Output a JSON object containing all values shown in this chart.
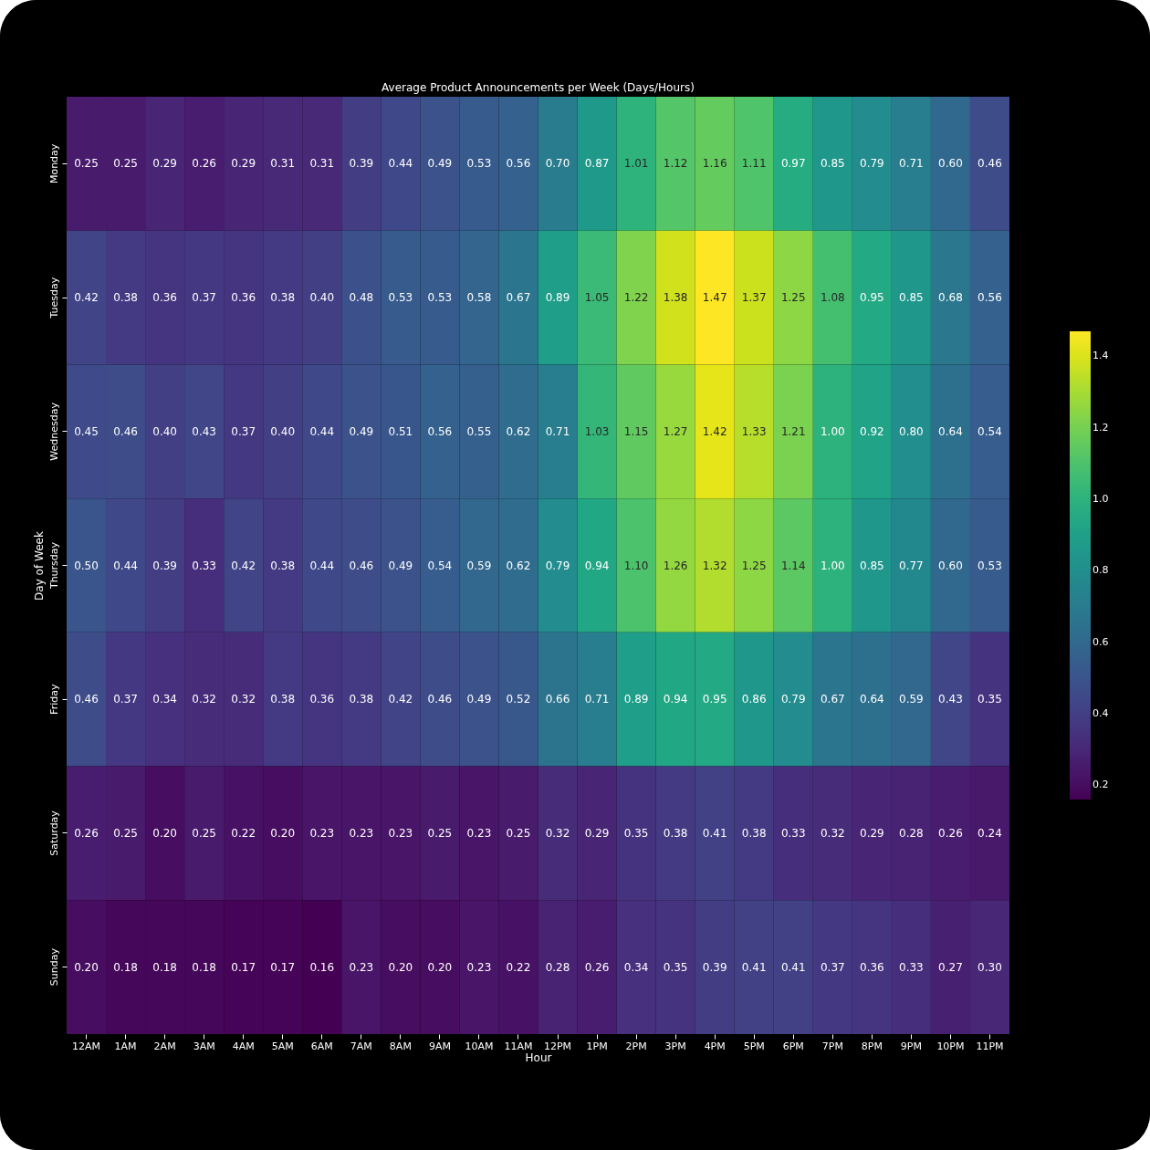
{
  "chart_data": {
    "type": "heatmap",
    "title": "Average Product Announcements per Week (Days/Hours)",
    "xlabel": "Hour",
    "ylabel": "Day of Week",
    "categories": [
      "12AM",
      "1AM",
      "2AM",
      "3AM",
      "4AM",
      "5AM",
      "6AM",
      "7AM",
      "8AM",
      "9AM",
      "10AM",
      "11AM",
      "12PM",
      "1PM",
      "2PM",
      "3PM",
      "4PM",
      "5PM",
      "6PM",
      "7PM",
      "8PM",
      "9PM",
      "10PM",
      "11PM"
    ],
    "y_categories": [
      "Monday",
      "Tuesday",
      "Wednesday",
      "Thursday",
      "Friday",
      "Saturday",
      "Sunday"
    ],
    "cells": [
      [
        0.25,
        0.25,
        0.29,
        0.26,
        0.29,
        0.31,
        0.31,
        0.39,
        0.44,
        0.49,
        0.53,
        0.56,
        0.7,
        0.87,
        1.01,
        1.12,
        1.16,
        1.11,
        0.97,
        0.85,
        0.79,
        0.71,
        0.6,
        0.46
      ],
      [
        0.42,
        0.38,
        0.36,
        0.37,
        0.36,
        0.38,
        0.4,
        0.48,
        0.53,
        0.53,
        0.58,
        0.67,
        0.89,
        1.05,
        1.22,
        1.38,
        1.47,
        1.37,
        1.25,
        1.08,
        0.95,
        0.85,
        0.68,
        0.56
      ],
      [
        0.45,
        0.46,
        0.4,
        0.43,
        0.37,
        0.4,
        0.44,
        0.49,
        0.51,
        0.56,
        0.55,
        0.62,
        0.71,
        1.03,
        1.15,
        1.27,
        1.42,
        1.33,
        1.21,
        1.0,
        0.92,
        0.8,
        0.64,
        0.54
      ],
      [
        0.5,
        0.44,
        0.39,
        0.33,
        0.42,
        0.38,
        0.44,
        0.46,
        0.49,
        0.54,
        0.59,
        0.62,
        0.79,
        0.94,
        1.1,
        1.26,
        1.32,
        1.25,
        1.14,
        1.0,
        0.85,
        0.77,
        0.6,
        0.53
      ],
      [
        0.46,
        0.37,
        0.34,
        0.32,
        0.32,
        0.38,
        0.36,
        0.38,
        0.42,
        0.46,
        0.49,
        0.52,
        0.66,
        0.71,
        0.89,
        0.94,
        0.95,
        0.86,
        0.79,
        0.67,
        0.64,
        0.59,
        0.43,
        0.35
      ],
      [
        0.26,
        0.25,
        0.2,
        0.25,
        0.22,
        0.2,
        0.23,
        0.23,
        0.23,
        0.25,
        0.23,
        0.25,
        0.32,
        0.29,
        0.35,
        0.38,
        0.41,
        0.38,
        0.33,
        0.32,
        0.29,
        0.28,
        0.26,
        0.24
      ],
      [
        0.2,
        0.18,
        0.18,
        0.18,
        0.17,
        0.17,
        0.16,
        0.23,
        0.2,
        0.2,
        0.23,
        0.22,
        0.28,
        0.26,
        0.34,
        0.35,
        0.39,
        0.41,
        0.41,
        0.37,
        0.36,
        0.33,
        0.27,
        0.3
      ]
    ],
    "cell_labels": [
      [
        "0.25",
        "0.25",
        "0.29",
        "0.26",
        "0.29",
        "0.31",
        "0.31",
        "0.39",
        "0.44",
        "0.49",
        "0.53",
        "0.56",
        "0.70",
        "0.87",
        "1.01",
        "1.12",
        "1.16",
        "1.11",
        "0.97",
        "0.85",
        "0.79",
        "0.71",
        "0.60",
        "0.46"
      ],
      [
        "0.42",
        "0.38",
        "0.36",
        "0.37",
        "0.36",
        "0.38",
        "0.40",
        "0.48",
        "0.53",
        "0.53",
        "0.58",
        "0.67",
        "0.89",
        "1.05",
        "1.22",
        "1.38",
        "1.47",
        "1.37",
        "1.25",
        "1.08",
        "0.95",
        "0.85",
        "0.68",
        "0.56"
      ],
      [
        "0.45",
        "0.46",
        "0.40",
        "0.43",
        "0.37",
        "0.40",
        "0.44",
        "0.49",
        "0.51",
        "0.56",
        "0.55",
        "0.62",
        "0.71",
        "1.03",
        "1.15",
        "1.27",
        "1.42",
        "1.33",
        "1.21",
        "1.00",
        "0.92",
        "0.80",
        "0.64",
        "0.54"
      ],
      [
        "0.50",
        "0.44",
        "0.39",
        "0.33",
        "0.42",
        "0.38",
        "0.44",
        "0.46",
        "0.49",
        "0.54",
        "0.59",
        "0.62",
        "0.79",
        "0.94",
        "1.10",
        "1.26",
        "1.32",
        "1.25",
        "1.14",
        "1.00",
        "0.85",
        "0.77",
        "0.60",
        "0.53"
      ],
      [
        "0.46",
        "0.37",
        "0.34",
        "0.32",
        "0.32",
        "0.38",
        "0.36",
        "0.38",
        "0.42",
        "0.46",
        "0.49",
        "0.52",
        "0.66",
        "0.71",
        "0.89",
        "0.94",
        "0.95",
        "0.86",
        "0.79",
        "0.67",
        "0.64",
        "0.59",
        "0.43",
        "0.35"
      ],
      [
        "0.26",
        "0.25",
        "0.20",
        "0.25",
        "0.22",
        "0.20",
        "0.23",
        "0.23",
        "0.23",
        "0.25",
        "0.23",
        "0.25",
        "0.32",
        "0.29",
        "0.35",
        "0.38",
        "0.41",
        "0.38",
        "0.33",
        "0.32",
        "0.29",
        "0.28",
        "0.26",
        "0.24"
      ],
      [
        "0.20",
        "0.18",
        "0.18",
        "0.18",
        "0.17",
        "0.17",
        "0.16",
        "0.23",
        "0.20",
        "0.20",
        "0.23",
        "0.22",
        "0.28",
        "0.26",
        "0.34",
        "0.35",
        "0.39",
        "0.41",
        "0.41",
        "0.37",
        "0.36",
        "0.33",
        "0.27",
        "0.30"
      ]
    ],
    "clim": [
      0.16,
      1.47
    ],
    "cticks": [
      0.2,
      0.4,
      0.6,
      0.8,
      {
        "value": 1,
        "label": "1.0"
      },
      1.2,
      1.4
    ]
  }
}
